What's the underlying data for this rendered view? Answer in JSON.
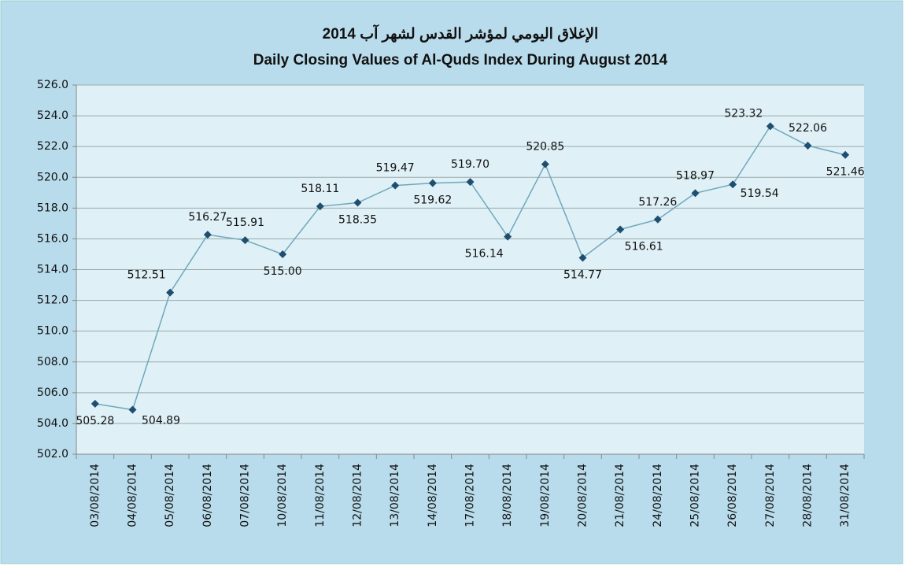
{
  "chart_data": {
    "type": "line",
    "title": "الإغلاق اليومي لمؤشر القدس لشهر آب 2014",
    "subtitle": "Daily Closing Values of Al-Quds Index During August 2014",
    "categories": [
      "03/08/2014",
      "04/08/2014",
      "05/08/2014",
      "06/08/2014",
      "07/08/2014",
      "10/08/2014",
      "11/08/2014",
      "12/08/2014",
      "13/08/2014",
      "14/08/2014",
      "17/08/2014",
      "18/08/2014",
      "19/08/2014",
      "20/08/2014",
      "21/08/2014",
      "24/08/2014",
      "25/08/2014",
      "26/08/2014",
      "27/08/2014",
      "28/08/2014",
      "31/08/2014"
    ],
    "values": [
      505.28,
      504.89,
      512.51,
      516.27,
      515.91,
      515.0,
      518.11,
      518.35,
      519.47,
      519.62,
      519.7,
      516.14,
      520.85,
      514.77,
      516.61,
      517.26,
      518.97,
      519.54,
      523.32,
      522.06,
      521.46
    ],
    "value_labels": [
      "505.28",
      "504.89",
      "512.51",
      "516.27",
      "515.91",
      "515.00",
      "518.11",
      "518.35",
      "519.47",
      "519.62",
      "519.70",
      "516.14",
      "520.85",
      "514.77",
      "516.61",
      "517.26",
      "518.97",
      "519.54",
      "523.32",
      "522.06",
      "521.46"
    ],
    "color": "#6fa8bd",
    "marker_color": "#1f4e6e",
    "ylim": [
      502,
      526
    ],
    "yticks": [
      {
        "value": 502,
        "label": "502.0"
      },
      {
        "value": 504,
        "label": "504.0"
      },
      {
        "value": 506,
        "label": "506.0"
      },
      {
        "value": 508,
        "label": "508.0"
      },
      {
        "value": 510,
        "label": "510.0"
      },
      {
        "value": 512,
        "label": "512.0"
      },
      {
        "value": 514,
        "label": "514.0"
      },
      {
        "value": 516,
        "label": "516.0"
      },
      {
        "value": 518,
        "label": "518.0"
      },
      {
        "value": 520,
        "label": "520.0"
      },
      {
        "value": 522,
        "label": "522.0"
      },
      {
        "value": 524,
        "label": "524.0"
      },
      {
        "value": 526,
        "label": "526.0"
      }
    ],
    "grid": true
  }
}
